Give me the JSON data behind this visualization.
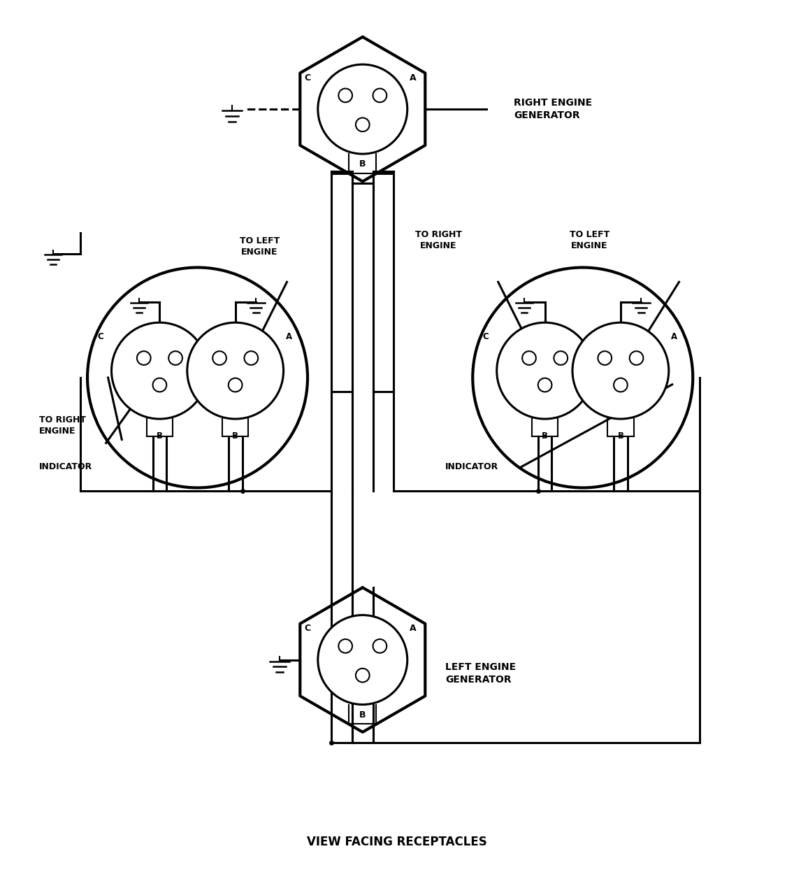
{
  "title": "VIEW FACING RECEPTACLES",
  "bg": "#ffffff",
  "lc": "#000000",
  "right_gen_label": "RIGHT ENGINE\nGENERATOR",
  "left_gen_label": "LEFT ENGINE\nGENERATOR",
  "left_ind_label": "INDICATOR",
  "right_ind_label": "INDICATOR",
  "to_left_engine_1": "TO LEFT\nENGINE",
  "to_right_engine_1": "TO RIGHT\nENGINE",
  "to_left_engine_2": "TO LEFT\nENGINE",
  "to_right_engine_2": "TO RIGHT\nENGINE",
  "figsize": [
    11.36,
    12.67
  ],
  "dpi": 100
}
